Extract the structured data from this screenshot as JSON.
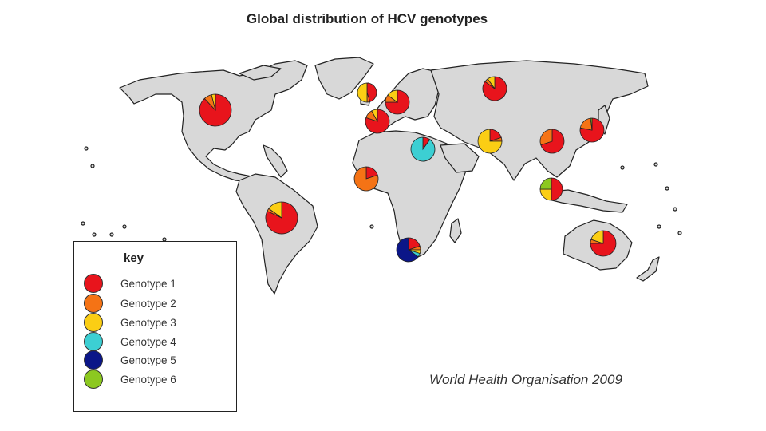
{
  "title": "Global distribution of HCV genotypes",
  "key": {
    "title": "key",
    "items": [
      {
        "label": "Genotype 1",
        "color": "#e8141c"
      },
      {
        "label": "Genotype 2",
        "color": "#f57315"
      },
      {
        "label": "Genotype 3",
        "color": "#fbce14"
      },
      {
        "label": "Genotype 4",
        "color": "#3ccfd3"
      },
      {
        "label": "Genotype 5",
        "color": "#0b1688"
      },
      {
        "label": "Genotype 6",
        "color": "#8cc820"
      }
    ]
  },
  "source": "World Health Organisation 2009",
  "regions": [
    {
      "name": "north-america",
      "shares": [
        0.88,
        0.08,
        0.04,
        0,
        0,
        0
      ]
    },
    {
      "name": "uk",
      "shares": [
        0.45,
        0.05,
        0.5,
        0,
        0,
        0
      ]
    },
    {
      "name": "northern-europe",
      "shares": [
        0.75,
        0.1,
        0.15,
        0,
        0,
        0
      ]
    },
    {
      "name": "russia",
      "shares": [
        0.85,
        0.05,
        0.1,
        0,
        0,
        0
      ]
    },
    {
      "name": "southern-europe",
      "shares": [
        0.8,
        0.12,
        0.08,
        0,
        0,
        0
      ]
    },
    {
      "name": "egypt",
      "shares": [
        0.1,
        0,
        0,
        0.9,
        0,
        0
      ]
    },
    {
      "name": "south-asia",
      "shares": [
        0.2,
        0.05,
        0.75,
        0,
        0,
        0
      ]
    },
    {
      "name": "china",
      "shares": [
        0.7,
        0.3,
        0,
        0,
        0,
        0
      ]
    },
    {
      "name": "japan",
      "shares": [
        0.78,
        0.2,
        0,
        0,
        0,
        0.02
      ]
    },
    {
      "name": "west-africa",
      "shares": [
        0.2,
        0.8,
        0,
        0,
        0,
        0
      ]
    },
    {
      "name": "south-america",
      "shares": [
        0.82,
        0.03,
        0.15,
        0,
        0,
        0
      ]
    },
    {
      "name": "southeast-asia",
      "shares": [
        0.5,
        0,
        0.25,
        0,
        0,
        0.25
      ]
    },
    {
      "name": "south-africa",
      "shares": [
        0.2,
        0.05,
        0.05,
        0.05,
        0.65,
        0
      ]
    },
    {
      "name": "australia",
      "shares": [
        0.75,
        0.05,
        0.2,
        0,
        0,
        0
      ]
    }
  ]
}
